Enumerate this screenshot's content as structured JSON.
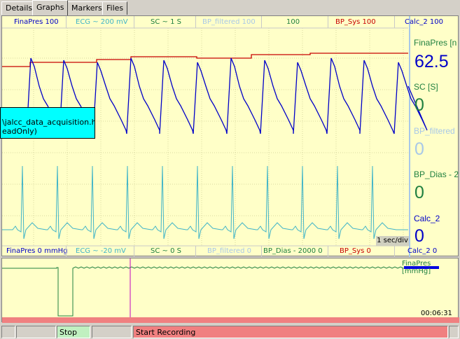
{
  "tabs": [
    {
      "label": "Details"
    },
    {
      "label": "Graphs"
    },
    {
      "label": "Markers"
    },
    {
      "label": "Files"
    }
  ],
  "top_scale": [
    {
      "label": "FinaPres 100",
      "color": "#0000c8"
    },
    {
      "label": "ECG ~ 200 mV",
      "color": "#40b4c8"
    },
    {
      "label": "SC ~ 1 S",
      "color": "#208040"
    },
    {
      "label": "BP_filtered 100",
      "color": "#a8c8e8"
    },
    {
      "label": "100",
      "color": "#208040"
    },
    {
      "label": "BP_Sys 100",
      "color": "#c80000"
    },
    {
      "label": "Calc_2 100",
      "color": "#0000c8"
    }
  ],
  "bottom_scale": [
    {
      "label": "FinaPres 0 mmHg",
      "color": "#0000c8"
    },
    {
      "label": "ECG ~ -20 mV",
      "color": "#40b4c8"
    },
    {
      "label": "SC ~ 0 S",
      "color": "#208040"
    },
    {
      "label": "BP_filtered 0",
      "color": "#a8c8e8"
    },
    {
      "label": "BP_Dias - 2000 0",
      "color": "#208040"
    },
    {
      "label": "BP_Sys 0",
      "color": "#c80000"
    },
    {
      "label": "Calc_2 0",
      "color": "#0000c8"
    }
  ],
  "side_panel": [
    {
      "label": "FinaPres [n",
      "value": "62.5",
      "label_color": "#208040",
      "value_color": "#0000c8"
    },
    {
      "label": "SC       [S]",
      "value": "0",
      "label_color": "#208040",
      "value_color": "#208040"
    },
    {
      "label": "BP_filtered",
      "value": "0",
      "label_color": "#a8c8e8",
      "value_color": "#a8c8e8"
    },
    {
      "label": "BP_Dias - 2",
      "value": "0",
      "label_color": "#208040",
      "value_color": "#208040"
    },
    {
      "label": "Calc_2",
      "value": "0",
      "label_color": "#0000c8",
      "value_color": "#0000c8"
    }
  ],
  "tooltip": {
    "line1": "\\jalcc_data_acquisition.html",
    "line2": "eadOnly)"
  },
  "time_scale": "1 sec/div",
  "overview": {
    "label": "FinaPres [mmHg]",
    "time": "00:06:31"
  },
  "status_bar": {
    "stop": "Stop",
    "start_recording": "Start Recording"
  },
  "colors": {
    "finapres": "#0000c8",
    "ecg": "#40b4c8",
    "bp_sys": "#c80000",
    "overview_trace": "#208040",
    "marker": "#c000c0",
    "plot_bg": "#ffffc8",
    "stop_bg": "#c0f0c0",
    "record_bg": "#f08080"
  }
}
